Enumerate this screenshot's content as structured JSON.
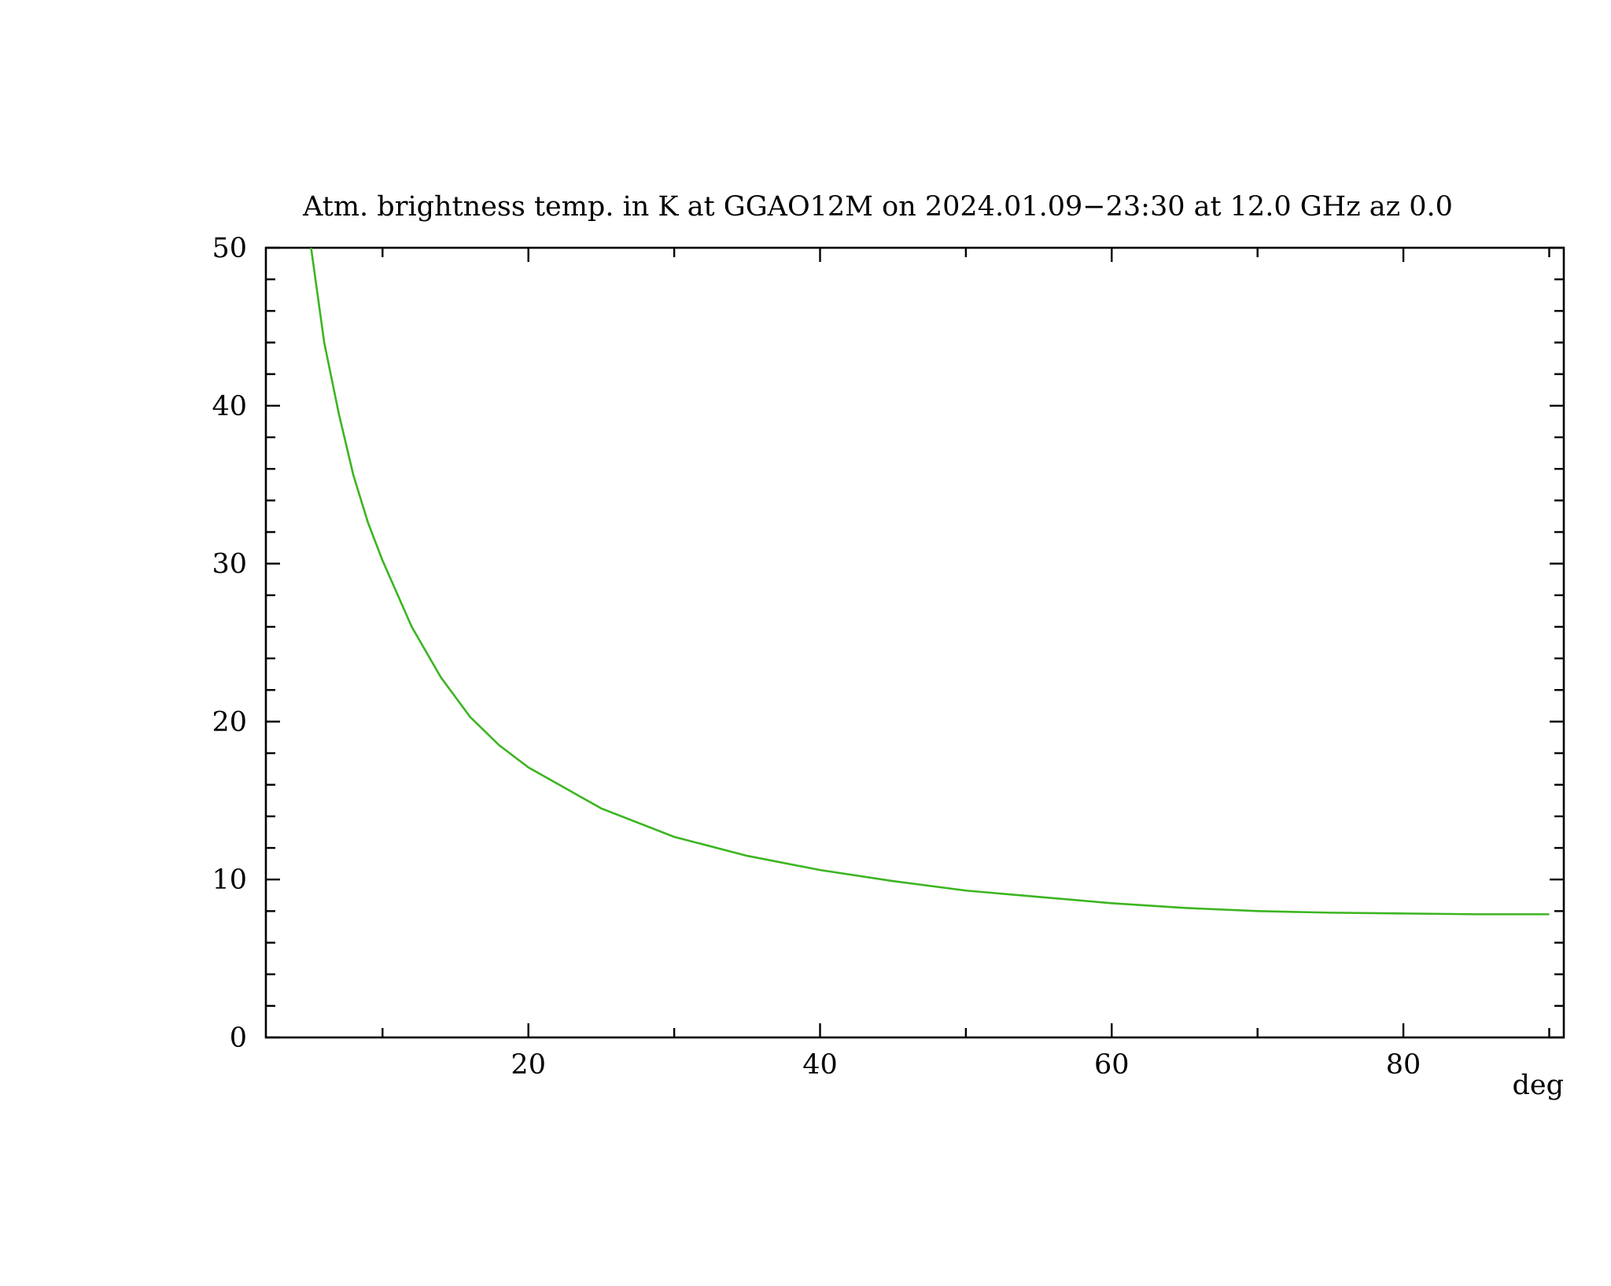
{
  "chart_data": {
    "type": "line",
    "title": "Atm. brightness temp. in K at GGAO12M  on 2024.01.09−23:30 at  12.0 GHz az   0.0",
    "x_label": "deg",
    "x": [
      5.1,
      6,
      7,
      8,
      9,
      10,
      12,
      14,
      16,
      18,
      20,
      25,
      30,
      35,
      40,
      45,
      50,
      55,
      60,
      65,
      70,
      75,
      80,
      85,
      90
    ],
    "series": [
      {
        "color": "#3cb521",
        "values": [
          50,
          44,
          39.5,
          35.6,
          32.6,
          30.2,
          26.0,
          22.8,
          20.3,
          18.5,
          17.1,
          14.5,
          12.7,
          11.5,
          10.6,
          9.9,
          9.3,
          8.9,
          8.5,
          8.2,
          8.0,
          7.9,
          7.85,
          7.8,
          7.8
        ]
      }
    ],
    "xlim": [
      2,
      91
    ],
    "ylim": [
      0,
      50
    ],
    "xticks": [
      20,
      40,
      60,
      80
    ],
    "yticks": [
      0,
      10,
      20,
      30,
      40,
      50
    ],
    "xminorticks": [
      10,
      30,
      50,
      70,
      90
    ],
    "yminorticks": [
      2,
      4,
      6,
      8,
      12,
      14,
      16,
      18,
      22,
      24,
      26,
      28,
      32,
      34,
      36,
      38,
      42,
      44,
      46,
      48
    ]
  }
}
